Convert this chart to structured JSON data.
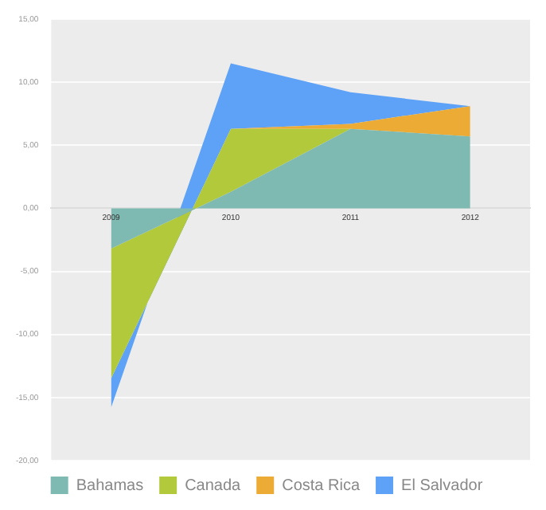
{
  "chart_data": {
    "type": "area",
    "stacked": true,
    "categories": [
      "2009",
      "2010",
      "2011",
      "2012"
    ],
    "series": [
      {
        "name": "Bahamas",
        "color": "#7fbab2",
        "values": [
          -3.2,
          1.3,
          6.3,
          5.7
        ]
      },
      {
        "name": "Canada",
        "color": "#b2c93c",
        "values": [
          -10.3,
          5.0,
          0,
          0
        ]
      },
      {
        "name": "Costa Rica",
        "color": "#ebab35",
        "values": [
          0,
          0,
          0.4,
          2.4
        ]
      },
      {
        "name": "El Salvador",
        "color": "#5ea2f8",
        "values": [
          -2.3,
          5.2,
          2.5,
          0
        ]
      }
    ],
    "ylim": [
      -20,
      15
    ],
    "yticks": [
      {
        "value": 15,
        "label": "15,00"
      },
      {
        "value": 10,
        "label": "10,00"
      },
      {
        "value": 5,
        "label": "5,00"
      },
      {
        "value": 0,
        "label": "0,00"
      },
      {
        "value": -5,
        "label": "-5,00"
      },
      {
        "value": -10,
        "label": "-10,00"
      },
      {
        "value": -15,
        "label": "-15,00"
      },
      {
        "value": -20,
        "label": "-20,00"
      }
    ],
    "grid": "y",
    "legend": "bottom",
    "marker": "none"
  }
}
